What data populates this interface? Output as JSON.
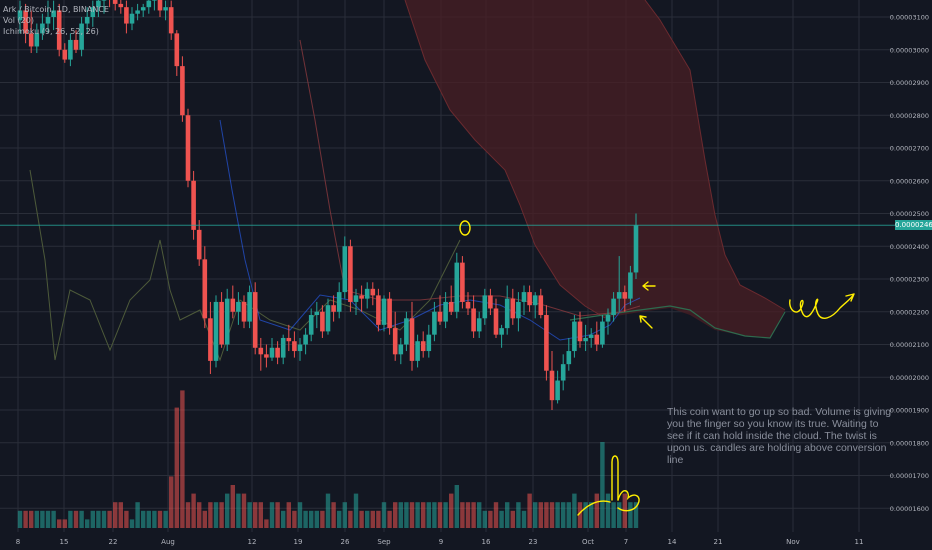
{
  "legend": {
    "symbol": "Ark / Bitcoin, 1D, BINANCE",
    "volume": "Vol (20)",
    "ichimoku": "Ichimoku (9, 26, 52, 26)"
  },
  "annotation_text": "This coin want to go up so bad. Volume is giving you the finger so you know its true. Waiting to see if it can hold inside the cloud. The twist is upon us. candles are holding above conversion line",
  "last_price_label": "0.00002464",
  "colors": {
    "background": "#131722",
    "up": "#26a69a",
    "down": "#ef5350",
    "cloud": "#4a1f24",
    "grid": "#2a2e39",
    "annotation_ink": "#ffee00",
    "baseline": "#21594f",
    "conversion": "#2962ff"
  },
  "chart_data": {
    "type": "candlestick",
    "pair": "ARK/BTC",
    "timeframe": "1D",
    "exchange": "BINANCE",
    "y_axis": {
      "ticks": [
        "0.00003100",
        "0.00003000",
        "0.00002900",
        "0.00002800",
        "0.00002700",
        "0.00002600",
        "0.00002500",
        "0.00002400",
        "0.00002300",
        "0.00002200",
        "0.00002100",
        "0.00002000",
        "0.00001900",
        "0.00001800",
        "0.00001700",
        "0.00001600"
      ]
    },
    "x_axis": {
      "ticks": [
        "8",
        "15",
        "22",
        "Aug",
        "12",
        "19",
        "26",
        "Sep",
        "9",
        "16",
        "23",
        "Oct",
        "7",
        "14",
        "21",
        "Nov",
        "11"
      ]
    },
    "candles": [
      {
        "o": 3.09e-05,
        "h": 3.15e-05,
        "l": 3.05e-05,
        "c": 3.12e-05
      },
      {
        "o": 3.12e-05,
        "h": 3.14e-05,
        "l": 3.02e-05,
        "c": 3.05e-05
      },
      {
        "o": 3.05e-05,
        "h": 3.12e-05,
        "l": 2.99e-05,
        "c": 3.01e-05
      },
      {
        "o": 3.01e-05,
        "h": 3.08e-05,
        "l": 2.99e-05,
        "c": 3.05e-05
      },
      {
        "o": 3.05e-05,
        "h": 3.11e-05,
        "l": 3.03e-05,
        "c": 3.08e-05
      },
      {
        "o": 3.08e-05,
        "h": 3.15e-05,
        "l": 3.05e-05,
        "c": 3.1e-05
      },
      {
        "o": 3.1e-05,
        "h": 3.15e-05,
        "l": 3.06e-05,
        "c": 3.12e-05
      },
      {
        "o": 3.12e-05,
        "h": 3.14e-05,
        "l": 2.98e-05,
        "c": 3e-05
      },
      {
        "o": 3e-05,
        "h": 3.02e-05,
        "l": 2.96e-05,
        "c": 2.97e-05
      },
      {
        "o": 2.97e-05,
        "h": 3.05e-05,
        "l": 2.95e-05,
        "c": 3.03e-05
      },
      {
        "o": 3.03e-05,
        "h": 3.06e-05,
        "l": 2.99e-05,
        "c": 3e-05
      },
      {
        "o": 3e-05,
        "h": 3.1e-05,
        "l": 2.98e-05,
        "c": 3.08e-05
      },
      {
        "o": 3.08e-05,
        "h": 3.13e-05,
        "l": 3.05e-05,
        "c": 3.1e-05
      },
      {
        "o": 3.1e-05,
        "h": 3.15e-05,
        "l": 3.07e-05,
        "c": 3.13e-05
      },
      {
        "o": 3.13e-05,
        "h": 3.17e-05,
        "l": 3.1e-05,
        "c": 3.15e-05
      },
      {
        "o": 3.15e-05,
        "h": 3.18e-05,
        "l": 3.11e-05,
        "c": 3.17e-05
      },
      {
        "o": 3.17e-05,
        "h": 3.18e-05,
        "l": 3.13e-05,
        "c": 3.16e-05
      },
      {
        "o": 3.16e-05,
        "h": 3.17e-05,
        "l": 3.12e-05,
        "c": 3.14e-05
      },
      {
        "o": 3.14e-05,
        "h": 3.16e-05,
        "l": 3.11e-05,
        "c": 3.13e-05
      },
      {
        "o": 3.13e-05,
        "h": 3.15e-05,
        "l": 3.05e-05,
        "c": 3.08e-05
      },
      {
        "o": 3.08e-05,
        "h": 3.13e-05,
        "l": 3.06e-05,
        "c": 3.11e-05
      },
      {
        "o": 3.11e-05,
        "h": 3.14e-05,
        "l": 3.09e-05,
        "c": 3.12e-05
      },
      {
        "o": 3.12e-05,
        "h": 3.14e-05,
        "l": 3.1e-05,
        "c": 3.13e-05
      },
      {
        "o": 3.13e-05,
        "h": 3.17e-05,
        "l": 3.11e-05,
        "c": 3.15e-05
      },
      {
        "o": 3.15e-05,
        "h": 3.18e-05,
        "l": 3.12e-05,
        "c": 3.16e-05
      },
      {
        "o": 3.16e-05,
        "h": 3.18e-05,
        "l": 3.1e-05,
        "c": 3.12e-05
      },
      {
        "o": 3.12e-05,
        "h": 3.15e-05,
        "l": 3.09e-05,
        "c": 3.13e-05
      },
      {
        "o": 3.13e-05,
        "h": 3.15e-05,
        "l": 3.03e-05,
        "c": 3.05e-05
      },
      {
        "o": 3.05e-05,
        "h": 3.06e-05,
        "l": 2.92e-05,
        "c": 2.95e-05
      },
      {
        "o": 2.95e-05,
        "h": 2.98e-05,
        "l": 2.78e-05,
        "c": 2.8e-05
      },
      {
        "o": 2.8e-05,
        "h": 2.82e-05,
        "l": 2.58e-05,
        "c": 2.6e-05
      },
      {
        "o": 2.6e-05,
        "h": 2.63e-05,
        "l": 2.42e-05,
        "c": 2.45e-05
      },
      {
        "o": 2.45e-05,
        "h": 2.48e-05,
        "l": 2.34e-05,
        "c": 2.36e-05
      },
      {
        "o": 2.36e-05,
        "h": 2.4e-05,
        "l": 2.15e-05,
        "c": 2.18e-05
      },
      {
        "o": 2.18e-05,
        "h": 2.23e-05,
        "l": 2.01e-05,
        "c": 2.05e-05
      },
      {
        "o": 2.05e-05,
        "h": 2.25e-05,
        "l": 2.03e-05,
        "c": 2.23e-05
      },
      {
        "o": 2.23e-05,
        "h": 2.26e-05,
        "l": 2.09e-05,
        "c": 2.1e-05
      },
      {
        "o": 2.1e-05,
        "h": 2.27e-05,
        "l": 2.08e-05,
        "c": 2.24e-05
      },
      {
        "o": 2.24e-05,
        "h": 2.28e-05,
        "l": 2.18e-05,
        "c": 2.2e-05
      },
      {
        "o": 2.2e-05,
        "h": 2.26e-05,
        "l": 2.16e-05,
        "c": 2.23e-05
      },
      {
        "o": 2.23e-05,
        "h": 2.25e-05,
        "l": 2.15e-05,
        "c": 2.17e-05
      },
      {
        "o": 2.17e-05,
        "h": 2.28e-05,
        "l": 2.15e-05,
        "c": 2.26e-05
      },
      {
        "o": 2.26e-05,
        "h": 2.29e-05,
        "l": 2.07e-05,
        "c": 2.09e-05
      },
      {
        "o": 2.09e-05,
        "h": 2.12e-05,
        "l": 2.02e-05,
        "c": 2.07e-05
      },
      {
        "o": 2.07e-05,
        "h": 2.1e-05,
        "l": 2.03e-05,
        "c": 2.06e-05
      },
      {
        "o": 2.06e-05,
        "h": 2.12e-05,
        "l": 2.05e-05,
        "c": 2.09e-05
      },
      {
        "o": 2.09e-05,
        "h": 2.11e-05,
        "l": 2.04e-05,
        "c": 2.06e-05
      },
      {
        "o": 2.06e-05,
        "h": 2.13e-05,
        "l": 2.04e-05,
        "c": 2.12e-05
      },
      {
        "o": 2.12e-05,
        "h": 2.16e-05,
        "l": 2.08e-05,
        "c": 2.11e-05
      },
      {
        "o": 2.11e-05,
        "h": 2.14e-05,
        "l": 2.06e-05,
        "c": 2.08e-05
      },
      {
        "o": 2.08e-05,
        "h": 2.12e-05,
        "l": 2.05e-05,
        "c": 2.1e-05
      },
      {
        "o": 2.1e-05,
        "h": 2.15e-05,
        "l": 2.07e-05,
        "c": 2.13e-05
      },
      {
        "o": 2.13e-05,
        "h": 2.21e-05,
        "l": 2.11e-05,
        "c": 2.19e-05
      },
      {
        "o": 2.19e-05,
        "h": 2.23e-05,
        "l": 2.15e-05,
        "c": 2.2e-05
      },
      {
        "o": 2.2e-05,
        "h": 2.22e-05,
        "l": 2.12e-05,
        "c": 2.14e-05
      },
      {
        "o": 2.14e-05,
        "h": 2.24e-05,
        "l": 2.13e-05,
        "c": 2.22e-05
      },
      {
        "o": 2.22e-05,
        "h": 2.25e-05,
        "l": 2.17e-05,
        "c": 2.2e-05
      },
      {
        "o": 2.2e-05,
        "h": 2.29e-05,
        "l": 2.18e-05,
        "c": 2.26e-05
      },
      {
        "o": 2.26e-05,
        "h": 2.43e-05,
        "l": 2.24e-05,
        "c": 2.4e-05
      },
      {
        "o": 2.4e-05,
        "h": 2.42e-05,
        "l": 2.2e-05,
        "c": 2.23e-05
      },
      {
        "o": 2.23e-05,
        "h": 2.27e-05,
        "l": 2.19e-05,
        "c": 2.25e-05
      },
      {
        "o": 2.25e-05,
        "h": 2.28e-05,
        "l": 2.2e-05,
        "c": 2.24e-05
      },
      {
        "o": 2.24e-05,
        "h": 2.29e-05,
        "l": 2.21e-05,
        "c": 2.27e-05
      },
      {
        "o": 2.27e-05,
        "h": 2.29e-05,
        "l": 2.22e-05,
        "c": 2.25e-05
      },
      {
        "o": 2.25e-05,
        "h": 2.27e-05,
        "l": 2.14e-05,
        "c": 2.16e-05
      },
      {
        "o": 2.16e-05,
        "h": 2.25e-05,
        "l": 2.14e-05,
        "c": 2.24e-05
      },
      {
        "o": 2.24e-05,
        "h": 2.26e-05,
        "l": 2.13e-05,
        "c": 2.15e-05
      },
      {
        "o": 2.15e-05,
        "h": 2.2e-05,
        "l": 2.05e-05,
        "c": 2.07e-05
      },
      {
        "o": 2.07e-05,
        "h": 2.12e-05,
        "l": 2.04e-05,
        "c": 2.1e-05
      },
      {
        "o": 2.1e-05,
        "h": 2.2e-05,
        "l": 2.08e-05,
        "c": 2.18e-05
      },
      {
        "o": 2.18e-05,
        "h": 2.23e-05,
        "l": 2.02e-05,
        "c": 2.05e-05
      },
      {
        "o": 2.05e-05,
        "h": 2.13e-05,
        "l": 2.03e-05,
        "c": 2.11e-05
      },
      {
        "o": 2.11e-05,
        "h": 2.14e-05,
        "l": 2.06e-05,
        "c": 2.08e-05
      },
      {
        "o": 2.08e-05,
        "h": 2.16e-05,
        "l": 2.06e-05,
        "c": 2.13e-05
      },
      {
        "o": 2.13e-05,
        "h": 2.23e-05,
        "l": 2.11e-05,
        "c": 2.2e-05
      },
      {
        "o": 2.2e-05,
        "h": 2.25e-05,
        "l": 2.16e-05,
        "c": 2.17e-05
      },
      {
        "o": 2.17e-05,
        "h": 2.26e-05,
        "l": 2.15e-05,
        "c": 2.23e-05
      },
      {
        "o": 2.23e-05,
        "h": 2.28e-05,
        "l": 2.19e-05,
        "c": 2.2e-05
      },
      {
        "o": 2.2e-05,
        "h": 2.38e-05,
        "l": 2.18e-05,
        "c": 2.35e-05
      },
      {
        "o": 2.35e-05,
        "h": 2.37e-05,
        "l": 2.21e-05,
        "c": 2.23e-05
      },
      {
        "o": 2.23e-05,
        "h": 2.26e-05,
        "l": 2.19e-05,
        "c": 2.21e-05
      },
      {
        "o": 2.21e-05,
        "h": 2.25e-05,
        "l": 2.12e-05,
        "c": 2.14e-05
      },
      {
        "o": 2.14e-05,
        "h": 2.2e-05,
        "l": 2.12e-05,
        "c": 2.18e-05
      },
      {
        "o": 2.18e-05,
        "h": 2.27e-05,
        "l": 2.16e-05,
        "c": 2.25e-05
      },
      {
        "o": 2.25e-05,
        "h": 2.27e-05,
        "l": 2.19e-05,
        "c": 2.21e-05
      },
      {
        "o": 2.21e-05,
        "h": 2.24e-05,
        "l": 2.12e-05,
        "c": 2.13e-05
      },
      {
        "o": 2.13e-05,
        "h": 2.16e-05,
        "l": 2.09e-05,
        "c": 2.15e-05
      },
      {
        "o": 2.15e-05,
        "h": 2.28e-05,
        "l": 2.13e-05,
        "c": 2.24e-05
      },
      {
        "o": 2.24e-05,
        "h": 2.27e-05,
        "l": 2.16e-05,
        "c": 2.18e-05
      },
      {
        "o": 2.18e-05,
        "h": 2.26e-05,
        "l": 2.14e-05,
        "c": 2.23e-05
      },
      {
        "o": 2.23e-05,
        "h": 2.28e-05,
        "l": 2.19e-05,
        "c": 2.26e-05
      },
      {
        "o": 2.26e-05,
        "h": 2.28e-05,
        "l": 2.2e-05,
        "c": 2.22e-05
      },
      {
        "o": 2.22e-05,
        "h": 2.26e-05,
        "l": 2.18e-05,
        "c": 2.25e-05
      },
      {
        "o": 2.25e-05,
        "h": 2.27e-05,
        "l": 2.18e-05,
        "c": 2.19e-05
      },
      {
        "o": 2.19e-05,
        "h": 2.22e-05,
        "l": 1.99e-05,
        "c": 2.02e-05
      },
      {
        "o": 2.02e-05,
        "h": 2.08e-05,
        "l": 1.9e-05,
        "c": 1.93e-05
      },
      {
        "o": 1.93e-05,
        "h": 2.02e-05,
        "l": 1.92e-05,
        "c": 1.99e-05
      },
      {
        "o": 1.99e-05,
        "h": 2.07e-05,
        "l": 1.96e-05,
        "c": 2.04e-05
      },
      {
        "o": 2.04e-05,
        "h": 2.12e-05,
        "l": 2.02e-05,
        "c": 2.08e-05
      },
      {
        "o": 2.08e-05,
        "h": 2.19e-05,
        "l": 2.06e-05,
        "c": 2.17e-05
      },
      {
        "o": 2.17e-05,
        "h": 2.2e-05,
        "l": 2.09e-05,
        "c": 2.11e-05
      },
      {
        "o": 2.11e-05,
        "h": 2.16e-05,
        "l": 2.08e-05,
        "c": 2.12e-05
      },
      {
        "o": 2.12e-05,
        "h": 2.15e-05,
        "l": 2.09e-05,
        "c": 2.13e-05
      },
      {
        "o": 2.13e-05,
        "h": 2.17e-05,
        "l": 2.08e-05,
        "c": 2.1e-05
      },
      {
        "o": 2.1e-05,
        "h": 2.19e-05,
        "l": 2.09e-05,
        "c": 2.17e-05
      },
      {
        "o": 2.17e-05,
        "h": 2.21e-05,
        "l": 2.13e-05,
        "c": 2.19e-05
      },
      {
        "o": 2.19e-05,
        "h": 2.26e-05,
        "l": 2.17e-05,
        "c": 2.24e-05
      },
      {
        "o": 2.24e-05,
        "h": 2.37e-05,
        "l": 2.2e-05,
        "c": 2.26e-05
      },
      {
        "o": 2.26e-05,
        "h": 2.28e-05,
        "l": 2.2e-05,
        "c": 2.24e-05
      },
      {
        "o": 2.24e-05,
        "h": 2.34e-05,
        "l": 2.22e-05,
        "c": 2.32e-05
      },
      {
        "o": 2.32e-05,
        "h": 2.5e-05,
        "l": 2.3e-05,
        "c": 2.464e-05
      }
    ],
    "volumes": [
      2,
      2,
      2,
      2,
      2,
      2,
      2,
      1,
      1,
      2,
      2,
      2,
      1,
      2,
      2,
      2,
      2,
      3,
      3,
      2,
      1,
      3,
      2,
      2,
      2,
      2,
      2,
      6,
      14,
      16,
      3,
      4,
      3,
      2,
      3,
      3,
      3,
      4,
      5,
      4,
      4,
      3,
      3,
      3,
      1,
      3,
      3,
      2,
      3,
      2,
      3,
      2,
      2,
      2,
      2,
      4,
      3,
      2,
      3,
      2,
      4,
      2,
      2,
      2,
      2,
      3,
      2,
      3,
      3,
      3,
      3,
      3,
      3,
      3,
      3,
      3,
      3,
      4,
      5,
      3,
      3,
      3,
      3,
      2,
      2,
      3,
      2,
      3,
      2,
      3,
      2,
      4,
      3,
      3,
      3,
      3,
      3,
      3,
      3,
      4,
      3,
      3,
      3,
      4,
      10,
      4,
      3,
      3,
      4,
      3,
      3
    ],
    "last_price": 2.464e-05
  }
}
